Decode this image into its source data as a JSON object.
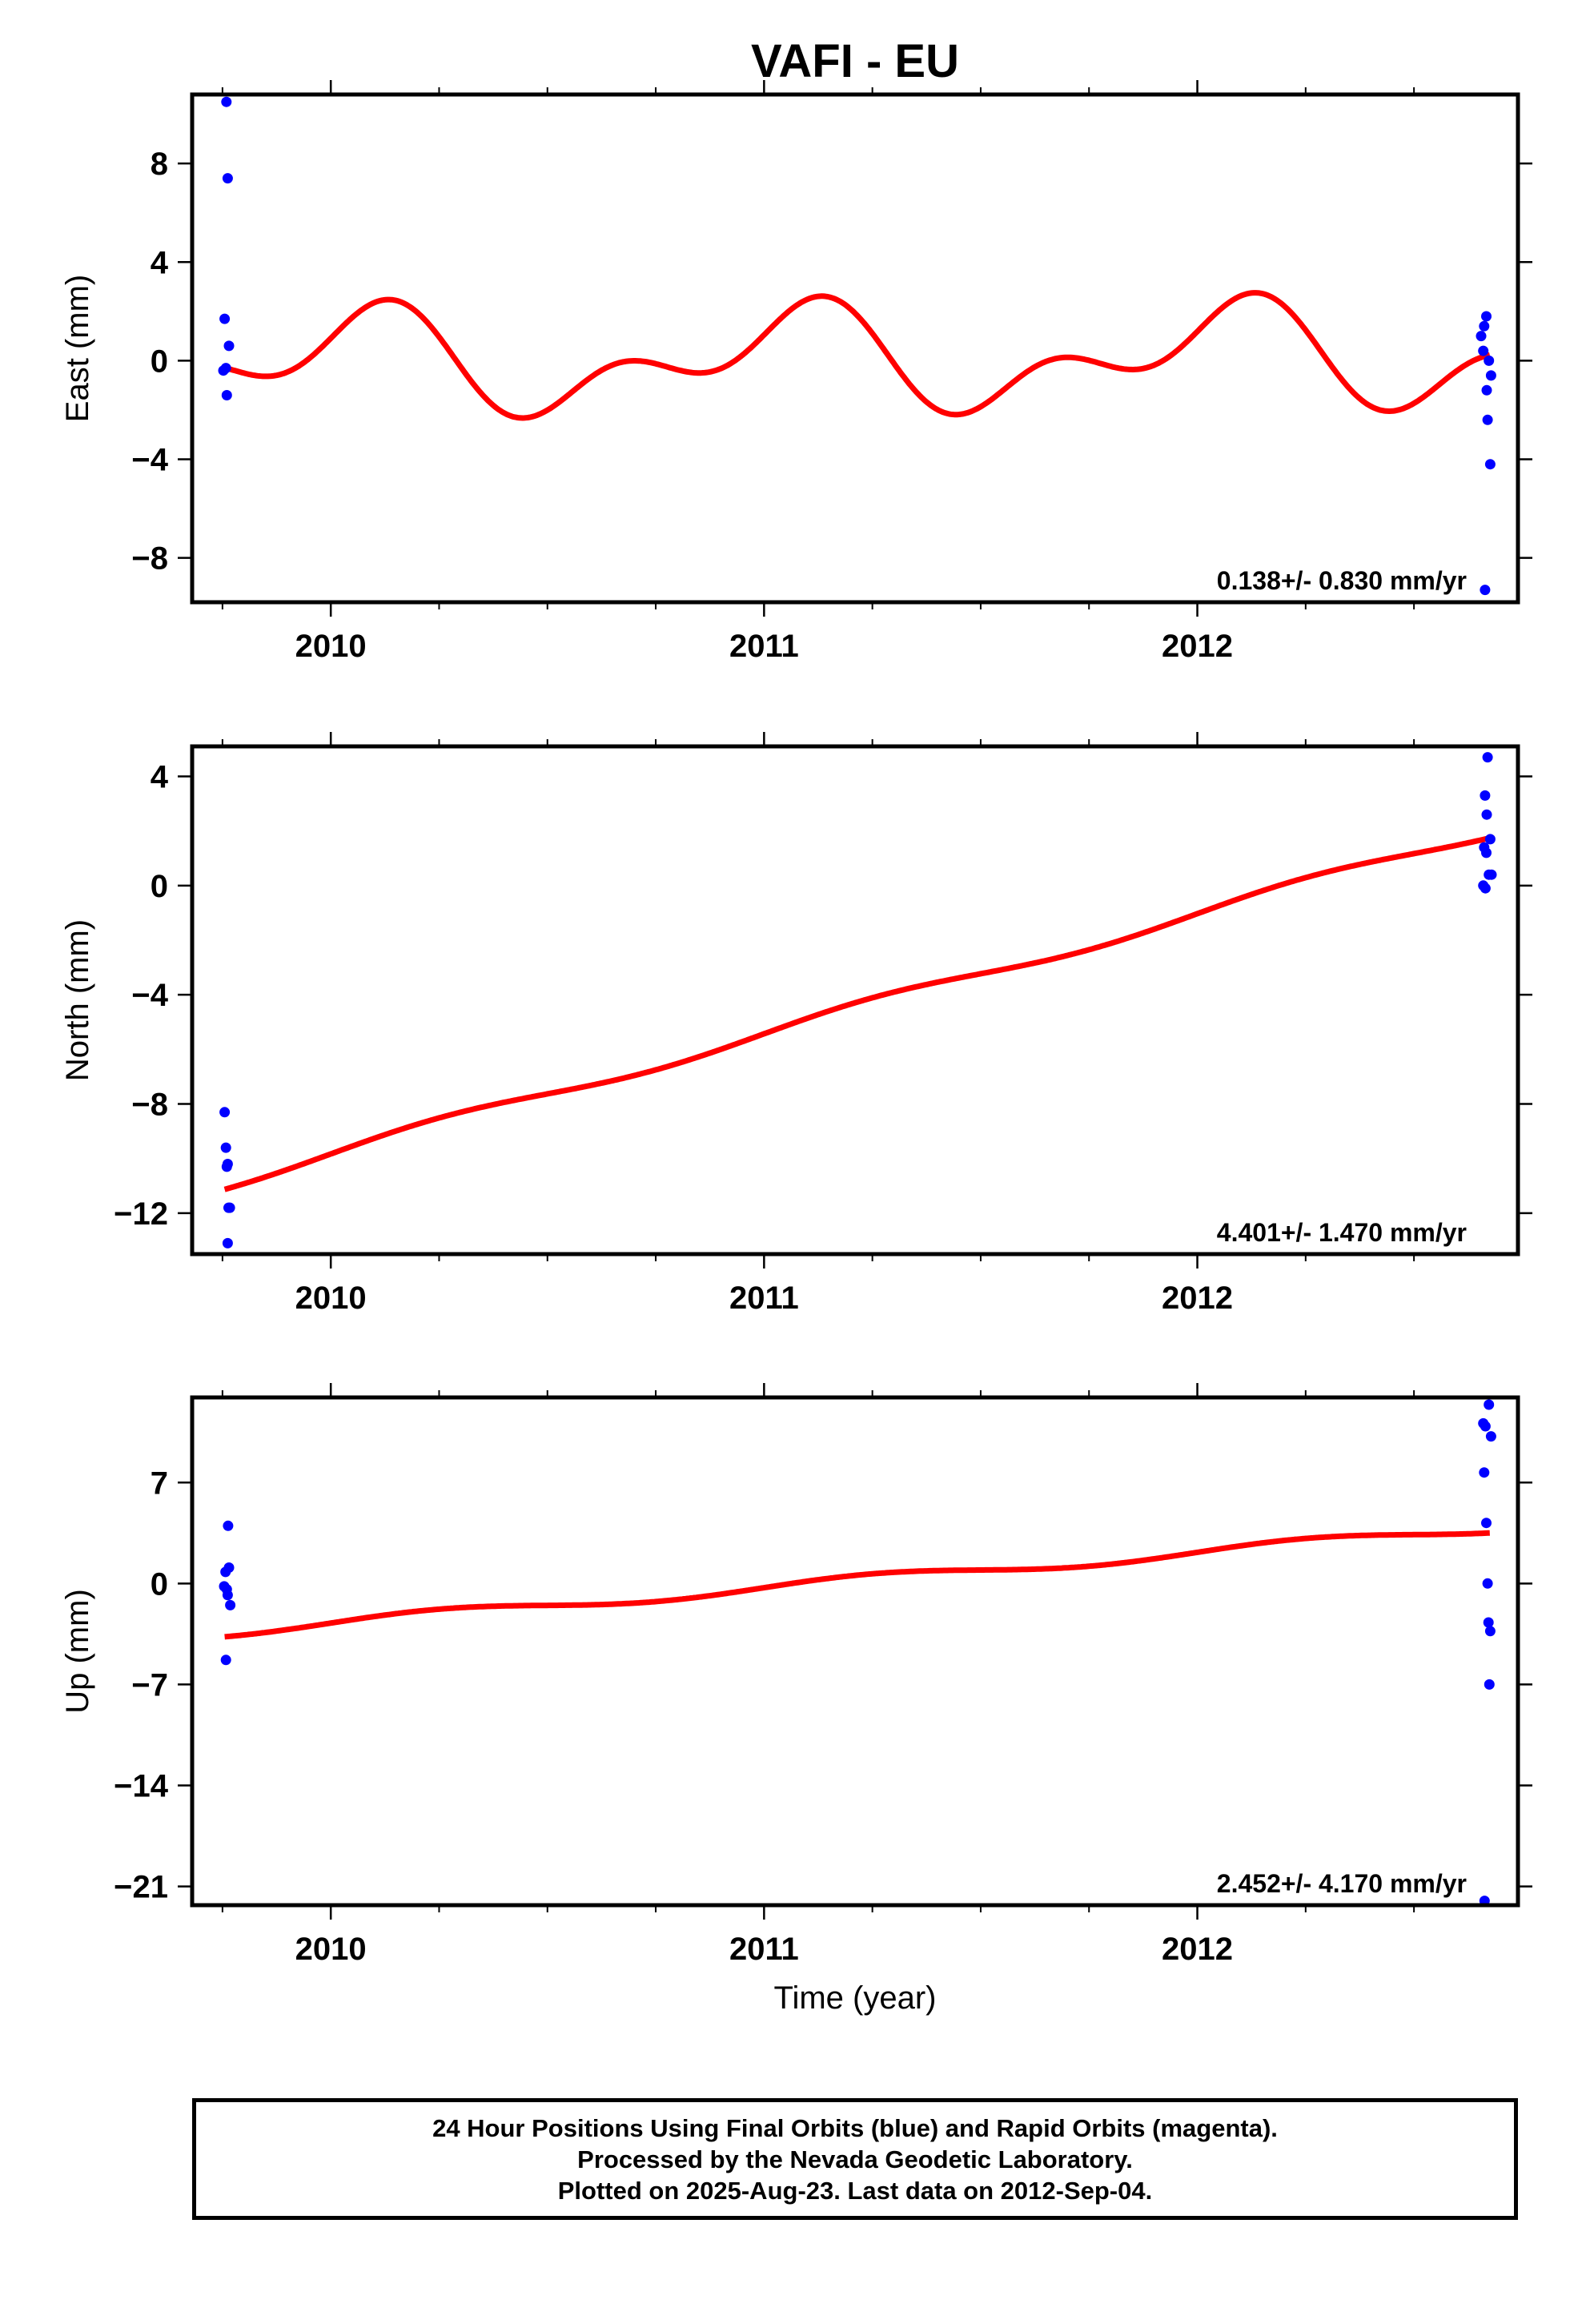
{
  "title": "VAFI - EU",
  "xlabel": "Time (year)",
  "colors": {
    "final_orbits": "#0000ff",
    "model_fit": "#ff0000",
    "frame": "#000000"
  },
  "footer": {
    "line1": "24 Hour Positions Using Final Orbits (blue) and Rapid Orbits (magenta).",
    "line2": "Processed by the Nevada Geodetic Laboratory.",
    "line3": "Plotted on 2025-Aug-23. Last data on 2012-Sep-04."
  },
  "chart_data": [
    {
      "type": "scatter",
      "ylabel": "East (mm)",
      "rate_label": "0.138+/- 0.830 mm/yr",
      "xlim": [
        2009.68,
        2012.74
      ],
      "ylim": [
        -9.8,
        10.8
      ],
      "xticks": [
        2010,
        2011,
        2012
      ],
      "yticks": [
        8,
        4,
        0,
        -4,
        -8
      ],
      "yticklabels": [
        "8",
        "4",
        "0",
        "−4",
        "−8"
      ],
      "points": [
        [
          2009.759,
          10.5
        ],
        [
          2009.762,
          7.4
        ],
        [
          2009.755,
          1.7
        ],
        [
          2009.765,
          0.6
        ],
        [
          2009.752,
          -0.4
        ],
        [
          2009.758,
          -0.3
        ],
        [
          2009.76,
          -1.4
        ],
        [
          2012.655,
          1.0
        ],
        [
          2012.662,
          1.4
        ],
        [
          2012.667,
          1.8
        ],
        [
          2012.66,
          0.4
        ],
        [
          2012.673,
          0.0
        ],
        [
          2012.678,
          -0.6
        ],
        [
          2012.668,
          -1.2
        ],
        [
          2012.67,
          -2.4
        ],
        [
          2012.676,
          -4.2
        ],
        [
          2012.664,
          -9.3
        ]
      ],
      "model": {
        "trend": 0.138,
        "offset": 0.05,
        "annual": 1.6,
        "annual_phase": 1.2,
        "semi": 1.2,
        "semi_phase": -0.4
      }
    },
    {
      "type": "scatter",
      "ylabel": "North (mm)",
      "rate_label": "4.401+/- 1.470 mm/yr",
      "xlim": [
        2009.68,
        2012.74
      ],
      "ylim": [
        -13.5,
        5.1
      ],
      "xticks": [
        2010,
        2011,
        2012
      ],
      "yticks": [
        4,
        0,
        -4,
        -8,
        -12
      ],
      "yticklabels": [
        "4",
        "0",
        "−4",
        "−8",
        "−12"
      ],
      "points": [
        [
          2009.755,
          -8.3
        ],
        [
          2009.758,
          -9.6
        ],
        [
          2009.76,
          -10.3
        ],
        [
          2009.762,
          -10.2
        ],
        [
          2009.764,
          -11.8
        ],
        [
          2009.767,
          -11.8
        ],
        [
          2009.762,
          -13.1
        ],
        [
          2012.67,
          4.7
        ],
        [
          2012.664,
          3.3
        ],
        [
          2012.668,
          2.6
        ],
        [
          2012.676,
          1.7
        ],
        [
          2012.662,
          1.4
        ],
        [
          2012.667,
          1.2
        ],
        [
          2012.673,
          0.4
        ],
        [
          2012.679,
          0.4
        ],
        [
          2012.66,
          0.0
        ],
        [
          2012.665,
          -0.1
        ]
      ],
      "model": {
        "trend": 4.401,
        "offset": -4.55,
        "annual": 0.22,
        "annual_phase": 0.0,
        "semi": 0.0,
        "semi_phase": 0.0
      }
    },
    {
      "type": "scatter",
      "ylabel": "Up (mm)",
      "rate_label": "2.452+/- 4.170 mm/yr",
      "xlim": [
        2009.68,
        2012.74
      ],
      "ylim": [
        -22.3,
        12.9
      ],
      "xticks": [
        2010,
        2011,
        2012
      ],
      "yticks": [
        7,
        0,
        -7,
        -14,
        -21
      ],
      "yticklabels": [
        "7",
        "0",
        "−7",
        "−14",
        "−21"
      ],
      "points": [
        [
          2009.763,
          4.0
        ],
        [
          2009.765,
          1.1
        ],
        [
          2009.757,
          0.8
        ],
        [
          2009.754,
          -0.2
        ],
        [
          2009.76,
          -0.4
        ],
        [
          2009.762,
          -0.8
        ],
        [
          2009.768,
          -1.5
        ],
        [
          2009.758,
          -5.3
        ],
        [
          2012.673,
          12.4
        ],
        [
          2012.66,
          11.1
        ],
        [
          2012.665,
          10.9
        ],
        [
          2012.678,
          10.2
        ],
        [
          2012.662,
          7.7
        ],
        [
          2012.667,
          4.2
        ],
        [
          2012.67,
          0.0
        ],
        [
          2012.672,
          -2.7
        ],
        [
          2012.676,
          -3.3
        ],
        [
          2012.674,
          -7.0
        ],
        [
          2012.663,
          -22.0
        ]
      ],
      "model": {
        "trend": 2.452,
        "offset": 0.2,
        "annual": 0.35,
        "annual_phase": 0.0,
        "semi": 0.0,
        "semi_phase": 0.0
      }
    }
  ]
}
